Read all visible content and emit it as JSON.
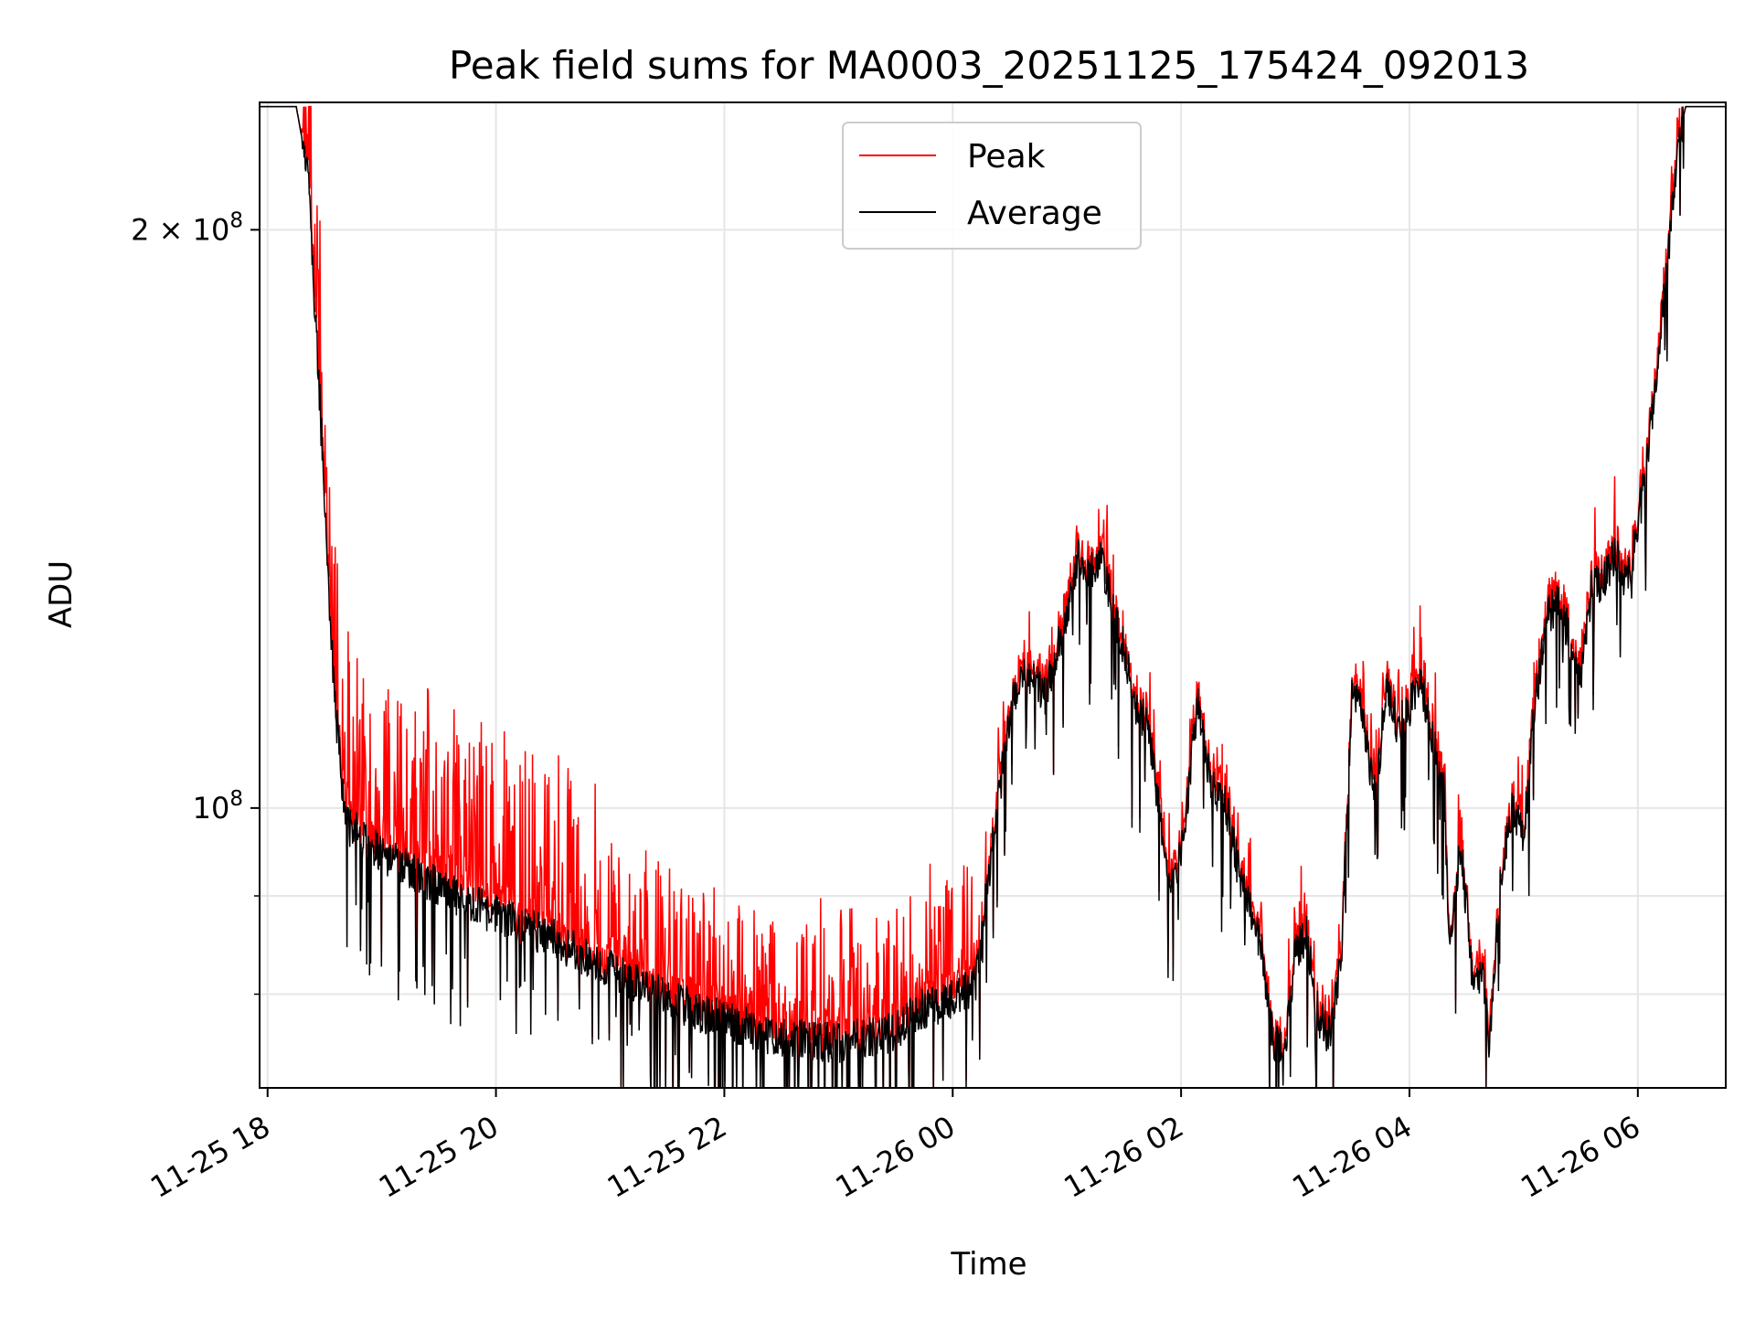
{
  "chart_data": {
    "type": "line",
    "title": "Peak field sums for MA0003_20251125_175424_092013",
    "xlabel": "Time",
    "ylabel": "ADU",
    "y_scale": "log",
    "ylim": [
      71500000,
      233000000
    ],
    "xlim_hours": [
      -0.07,
      12.77
    ],
    "grid": true,
    "legend_position": "upper center",
    "x_ticks": [
      {
        "hours": 0,
        "label": "11-25 18"
      },
      {
        "hours": 2,
        "label": "11-25 20"
      },
      {
        "hours": 4,
        "label": "11-25 22"
      },
      {
        "hours": 6,
        "label": "11-26 00"
      },
      {
        "hours": 8,
        "label": "11-26 02"
      },
      {
        "hours": 10,
        "label": "11-26 04"
      },
      {
        "hours": 12,
        "label": "11-26 06"
      }
    ],
    "y_ticks_major": [
      {
        "value": 100000000,
        "base": "10",
        "exp": "8",
        "coef": ""
      },
      {
        "value": 200000000,
        "base": "10",
        "exp": "8",
        "coef": "2 ×"
      }
    ],
    "y_ticks_minor": [
      80000000,
      90000000
    ],
    "series": [
      {
        "name": "Peak",
        "color": "#ff0000"
      },
      {
        "name": "Average",
        "color": "#000000"
      }
    ],
    "average_profile": [
      [
        -0.07,
        232000000
      ],
      [
        0.25,
        232000000
      ],
      [
        0.35,
        215000000
      ],
      [
        0.42,
        180000000
      ],
      [
        0.5,
        145000000
      ],
      [
        0.55,
        125000000
      ],
      [
        0.6,
        112000000
      ],
      [
        0.65,
        103000000
      ],
      [
        0.7,
        98000000
      ],
      [
        1.0,
        94500000
      ],
      [
        1.5,
        91000000
      ],
      [
        2.0,
        88000000
      ],
      [
        2.5,
        85500000
      ],
      [
        3.0,
        82500000
      ],
      [
        3.5,
        79500000
      ],
      [
        4.0,
        77500000
      ],
      [
        4.5,
        76000000
      ],
      [
        5.0,
        75500000
      ],
      [
        5.5,
        76500000
      ],
      [
        5.7,
        78500000
      ],
      [
        6.0,
        79500000
      ],
      [
        6.2,
        81000000
      ],
      [
        6.35,
        96000000
      ],
      [
        6.5,
        112000000
      ],
      [
        6.6,
        117000000
      ],
      [
        6.7,
        117000000
      ],
      [
        6.8,
        114000000
      ],
      [
        6.9,
        120000000
      ],
      [
        7.0,
        125000000
      ],
      [
        7.1,
        136000000
      ],
      [
        7.2,
        132000000
      ],
      [
        7.3,
        135000000
      ],
      [
        7.4,
        127000000
      ],
      [
        7.5,
        121000000
      ],
      [
        7.6,
        113000000
      ],
      [
        7.7,
        111000000
      ],
      [
        7.8,
        101000000
      ],
      [
        7.9,
        90000000
      ],
      [
        8.0,
        95000000
      ],
      [
        8.1,
        107000000
      ],
      [
        8.15,
        114000000
      ],
      [
        8.25,
        103000000
      ],
      [
        8.4,
        100000000
      ],
      [
        8.5,
        93000000
      ],
      [
        8.7,
        85000000
      ],
      [
        8.8,
        76000000
      ],
      [
        8.9,
        74500000
      ],
      [
        9.0,
        84000000
      ],
      [
        9.1,
        86000000
      ],
      [
        9.2,
        78000000
      ],
      [
        9.3,
        76000000
      ],
      [
        9.4,
        83000000
      ],
      [
        9.5,
        117000000
      ],
      [
        9.6,
        110000000
      ],
      [
        9.7,
        101000000
      ],
      [
        9.8,
        116000000
      ],
      [
        9.9,
        110000000
      ],
      [
        10.0,
        113000000
      ],
      [
        10.1,
        116000000
      ],
      [
        10.2,
        109000000
      ],
      [
        10.3,
        103000000
      ],
      [
        10.35,
        84000000
      ],
      [
        10.45,
        96000000
      ],
      [
        10.55,
        82000000
      ],
      [
        10.65,
        81000000
      ],
      [
        10.7,
        75000000
      ],
      [
        10.8,
        92000000
      ],
      [
        10.9,
        100000000
      ],
      [
        11.0,
        97000000
      ],
      [
        11.1,
        113000000
      ],
      [
        11.2,
        126000000
      ],
      [
        11.3,
        128000000
      ],
      [
        11.4,
        123000000
      ],
      [
        11.5,
        117000000
      ],
      [
        11.6,
        131000000
      ],
      [
        11.7,
        131000000
      ],
      [
        11.8,
        136000000
      ],
      [
        11.9,
        130000000
      ],
      [
        12.0,
        140000000
      ],
      [
        12.1,
        155000000
      ],
      [
        12.25,
        190000000
      ],
      [
        12.35,
        222000000
      ],
      [
        12.42,
        232000000
      ],
      [
        12.77,
        232000000
      ]
    ]
  }
}
